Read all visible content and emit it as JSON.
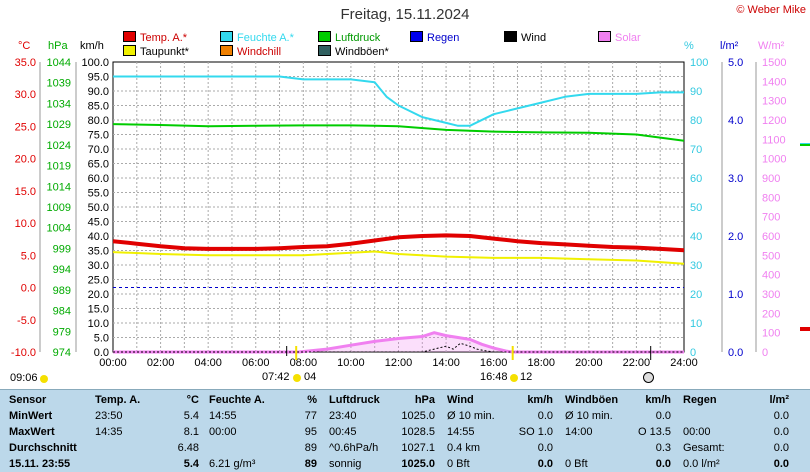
{
  "page": {
    "title": "Freitag, 15.11.2024",
    "copyright": "© Weber Mike",
    "sunrise_time": "07:42",
    "sunset_time": "16:48",
    "moon_left": "04",
    "moon_right": "12",
    "left_time": "09:06"
  },
  "legend": [
    {
      "label": "Temp. A.*",
      "color": "#e00000"
    },
    {
      "label": "Feuchte A.*",
      "color": "#33d9ee"
    },
    {
      "label": "Luftdruck",
      "color": "#00cc00"
    },
    {
      "label": "Regen",
      "color": "#0000ee"
    },
    {
      "label": "Wind",
      "color": "#000000"
    },
    {
      "label": "Solar",
      "color": "#f080f0"
    },
    {
      "label": "Taupunkt*",
      "color": "#f0f000"
    },
    {
      "label": "Windchill",
      "color": "#f08000"
    },
    {
      "label": "Windböen*",
      "color": "#306060"
    }
  ],
  "units": {
    "temp": "°C",
    "pressure": "hPa",
    "wind": "km/h",
    "humidity": "%",
    "rain": "l/m²",
    "solar": "W/m²"
  },
  "axes": {
    "temp_ticks": [
      "35.0",
      "30.0",
      "25.0",
      "20.0",
      "15.0",
      "10.0",
      "5.0",
      "0.0",
      "-5.0",
      "-10.0"
    ],
    "pressure_ticks": [
      "1044",
      "1039",
      "1034",
      "1029",
      "1024",
      "1019",
      "1014",
      "1009",
      "1004",
      "999",
      "994",
      "989",
      "984",
      "979",
      "974"
    ],
    "wind_ticks": [
      "100.0",
      "95.0",
      "90.0",
      "85.0",
      "80.0",
      "75.0",
      "70.0",
      "65.0",
      "60.0",
      "55.0",
      "50.0",
      "45.0",
      "40.0",
      "35.0",
      "30.0",
      "25.0",
      "20.0",
      "15.0",
      "10.0",
      "5.0",
      "0.0"
    ],
    "humidity_ticks": [
      "100",
      "90",
      "80",
      "70",
      "60",
      "50",
      "40",
      "30",
      "20",
      "10",
      "0"
    ],
    "rain_ticks": [
      "5.0",
      "4.0",
      "3.0",
      "2.0",
      "1.0",
      "0.0"
    ],
    "solar_ticks": [
      "1500",
      "1400",
      "1300",
      "1200",
      "1100",
      "1000",
      "900",
      "800",
      "700",
      "600",
      "500",
      "400",
      "300",
      "200",
      "100",
      "0"
    ],
    "x_ticks": [
      "00:00",
      "02:00",
      "04:00",
      "06:00",
      "08:00",
      "10:00",
      "12:00",
      "14:00",
      "16:00",
      "18:00",
      "20:00",
      "22:00",
      "24:00"
    ]
  },
  "chart_data": {
    "type": "line",
    "title": "Freitag, 15.11.2024",
    "x_unit": "hour",
    "xlim": [
      0,
      24
    ],
    "series": [
      {
        "name": "Temp. A.*",
        "unit": "°C",
        "ylim": [
          -10,
          35
        ],
        "color": "#e00000",
        "x": [
          0,
          1,
          2,
          3,
          4,
          5,
          6,
          7,
          8,
          9,
          10,
          11,
          12,
          13,
          14,
          15,
          16,
          17,
          18,
          19,
          20,
          21,
          22,
          23,
          24
        ],
        "values": [
          7.2,
          6.8,
          6.4,
          6.1,
          6.0,
          6.0,
          6.0,
          6.1,
          6.3,
          6.4,
          6.8,
          7.3,
          7.8,
          8.0,
          8.1,
          8.0,
          7.6,
          7.2,
          6.9,
          6.7,
          6.5,
          6.3,
          6.2,
          6.0,
          5.8
        ]
      },
      {
        "name": "Feuchte A.*",
        "unit": "%",
        "ylim": [
          0,
          100
        ],
        "color": "#33d9ee",
        "x": [
          0,
          1,
          2,
          3,
          4,
          5,
          6,
          7,
          8,
          9,
          10,
          11,
          11.5,
          12,
          13,
          14,
          14.5,
          15,
          16,
          17,
          18,
          19,
          20,
          21,
          22,
          23,
          24
        ],
        "values": [
          95,
          95,
          95,
          95,
          95,
          95,
          95,
          95,
          94,
          94,
          94,
          93,
          88,
          85,
          81,
          79,
          78,
          78,
          82,
          84,
          86,
          88,
          89,
          89,
          89,
          89.5,
          89.5
        ]
      },
      {
        "name": "Luftdruck",
        "unit": "hPa",
        "ylim": [
          974,
          1044
        ],
        "color": "#00cc00",
        "x": [
          0,
          2,
          4,
          6,
          8,
          10,
          12,
          14,
          16,
          18,
          20,
          22,
          24
        ],
        "values": [
          1029.0,
          1028.8,
          1028.5,
          1028.6,
          1028.7,
          1028.7,
          1028.5,
          1027.6,
          1027.2,
          1027.0,
          1026.9,
          1026.5,
          1025.0
        ]
      },
      {
        "name": "Taupunkt*",
        "unit": "°C",
        "ylim": [
          -10,
          35
        ],
        "color": "#f0f000",
        "x": [
          0,
          2,
          4,
          6,
          8,
          10,
          11,
          12,
          14,
          16,
          18,
          20,
          22,
          24
        ],
        "values": [
          5.5,
          5.2,
          5.0,
          5.0,
          5.0,
          5.4,
          5.6,
          5.2,
          4.8,
          4.6,
          4.6,
          4.4,
          4.2,
          3.7
        ]
      },
      {
        "name": "Solar",
        "unit": "W/m²",
        "ylim": [
          0,
          1500
        ],
        "color": "#f080f0",
        "x": [
          0,
          7.8,
          9,
          10,
          11,
          12,
          13,
          13.5,
          14,
          14.5,
          15,
          15.5,
          16,
          16.5,
          16.8,
          24
        ],
        "values": [
          0,
          0,
          15,
          35,
          55,
          70,
          80,
          100,
          85,
          75,
          65,
          40,
          20,
          5,
          0,
          0
        ]
      },
      {
        "name": "Wind",
        "unit": "km/h",
        "ylim": [
          0,
          100
        ],
        "color": "#000000",
        "x": [
          0,
          13,
          13.5,
          14,
          14.3,
          14.6,
          15,
          15.3,
          15.6,
          16,
          24
        ],
        "values": [
          0,
          0,
          1,
          2,
          1,
          3,
          2,
          1,
          0.5,
          0,
          0
        ]
      }
    ]
  },
  "table": {
    "sensor": {
      "header": "Sensor",
      "rows": [
        "MinWert",
        "MaxWert",
        "Durchschnitt",
        "15.11. 23:55"
      ]
    },
    "temp": {
      "header": "Temp. A.",
      "unit": "°C",
      "rows": [
        [
          "23:50",
          "5.4"
        ],
        [
          "14:35",
          "8.1"
        ],
        [
          "",
          "6.48"
        ],
        [
          "",
          "5.4"
        ]
      ]
    },
    "humidity": {
      "header": "Feuchte A.",
      "unit": "%",
      "rows": [
        [
          "14:55",
          "77"
        ],
        [
          "00:00",
          "95"
        ],
        [
          "",
          "89"
        ],
        [
          "6.21 g/m³",
          "89"
        ]
      ]
    },
    "pressure": {
      "header": "Luftdruck",
      "unit": "hPa",
      "rows": [
        [
          "23:40",
          "1025.0"
        ],
        [
          "00:45",
          "1028.5"
        ],
        [
          "^0.6hPa/h",
          "1027.1"
        ],
        [
          "sonnig",
          "1025.0"
        ]
      ]
    },
    "wind": {
      "header": "Wind",
      "unit": "km/h",
      "rows": [
        [
          "Ø 10 min.",
          "0.0"
        ],
        [
          "14:55",
          "SO 1.0"
        ],
        [
          "0.4 km",
          "0.0"
        ],
        [
          "0 Bft",
          "0.0"
        ]
      ]
    },
    "gust": {
      "header": "Windböen",
      "unit": "km/h",
      "rows": [
        [
          "Ø 10 min.",
          "0.0"
        ],
        [
          "14:00",
          "O 13.5"
        ],
        [
          "",
          "0.3"
        ],
        [
          "0 Bft",
          "0.0"
        ]
      ]
    },
    "rain": {
      "header": "Regen",
      "unit": "l/m²",
      "rows": [
        [
          "",
          "0.0"
        ],
        [
          "00:00",
          "0.0"
        ],
        [
          "Gesamt:",
          "0.0"
        ],
        [
          "0.0 l/m²",
          "0.0"
        ]
      ]
    }
  }
}
